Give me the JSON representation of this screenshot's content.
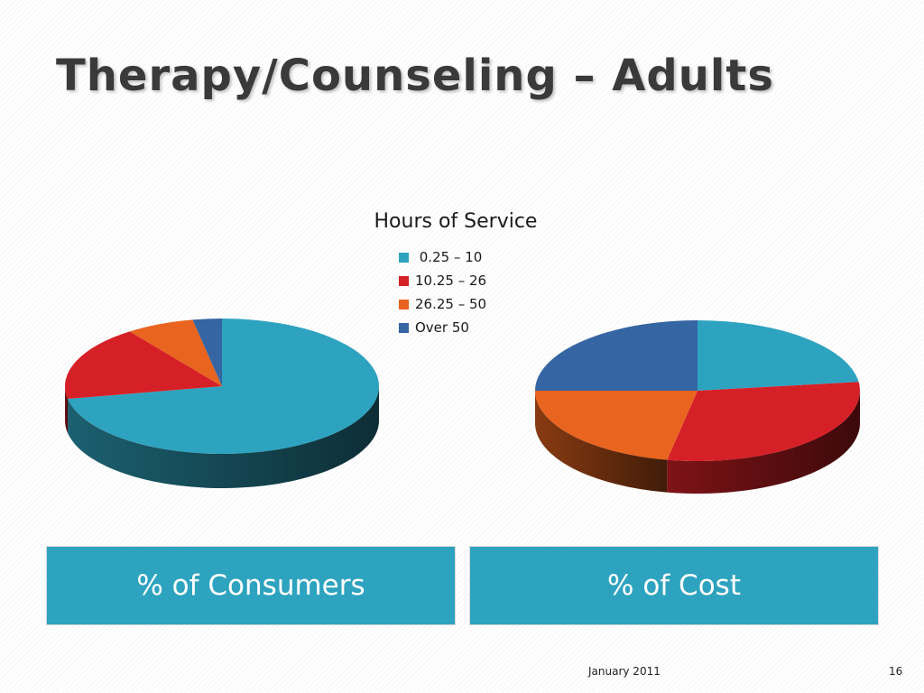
{
  "slide": {
    "title": "Therapy/Counseling – Adults",
    "footer_date": "January 2011",
    "page_number": "16"
  },
  "chart_data": {
    "type": "pie",
    "legend_title": "Hours of Service",
    "legend_position": "top-center",
    "categories": [
      " 0.25 – 10",
      "10.25 – 26",
      "26.25 – 50",
      "Over 50"
    ],
    "colors": [
      "#2ea3bf",
      "#d62027",
      "#e8641f",
      "#3565a3"
    ],
    "charts": [
      {
        "caption": "% of Consumers",
        "values": [
          72,
          18,
          7,
          3
        ]
      },
      {
        "caption": "% of Cost",
        "values": [
          23,
          30,
          22,
          25
        ]
      }
    ]
  }
}
